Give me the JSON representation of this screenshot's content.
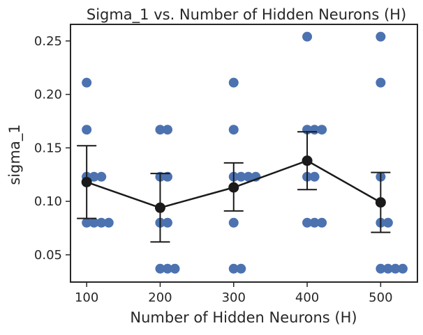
{
  "chart_data": {
    "type": "scatter",
    "title": "Sigma_1 vs. Number of Hidden Neurons (H)",
    "xlabel": "Number of Hidden Neurons (H)",
    "ylabel": "sigma_1",
    "xlim": [
      78,
      550
    ],
    "ylim": [
      0.0245,
      0.2655
    ],
    "x_ticks": [
      100,
      200,
      300,
      400,
      500
    ],
    "x_tick_labels": [
      "100",
      "200",
      "300",
      "400",
      "500"
    ],
    "y_ticks": [
      0.05,
      0.1,
      0.15,
      0.2,
      0.25
    ],
    "y_tick_labels": [
      "0.05",
      "0.10",
      "0.15",
      "0.20",
      "0.25"
    ],
    "grid": false,
    "colors": {
      "points": "#4c72b0",
      "mean": "#1a1a1a",
      "axes": "#262626"
    },
    "series": [
      {
        "kind": "points",
        "x": [
          100,
          100,
          100,
          100,
          100,
          110,
          110,
          120,
          120,
          130,
          200,
          200,
          200,
          200,
          200,
          210,
          210,
          210,
          210,
          220,
          300,
          300,
          300,
          300,
          300,
          310,
          310,
          320,
          330,
          400,
          400,
          400,
          400,
          410,
          410,
          410,
          420,
          420,
          500,
          500,
          500,
          500,
          500,
          510,
          510,
          520,
          530
        ],
        "y": [
          0.211,
          0.167,
          0.123,
          0.123,
          0.08,
          0.123,
          0.08,
          0.123,
          0.08,
          0.08,
          0.167,
          0.123,
          0.08,
          0.08,
          0.037,
          0.167,
          0.123,
          0.08,
          0.037,
          0.037,
          0.211,
          0.167,
          0.123,
          0.08,
          0.037,
          0.123,
          0.037,
          0.123,
          0.123,
          0.254,
          0.167,
          0.123,
          0.08,
          0.167,
          0.123,
          0.08,
          0.167,
          0.08,
          0.254,
          0.211,
          0.123,
          0.08,
          0.037,
          0.08,
          0.037,
          0.037,
          0.037
        ]
      },
      {
        "kind": "mean_with_error",
        "x": [
          100,
          200,
          300,
          400,
          500
        ],
        "y": [
          0.118,
          0.094,
          0.113,
          0.138,
          0.099
        ],
        "err_low": [
          0.084,
          0.062,
          0.091,
          0.111,
          0.071
        ],
        "err_high": [
          0.152,
          0.126,
          0.136,
          0.165,
          0.127
        ]
      }
    ]
  }
}
